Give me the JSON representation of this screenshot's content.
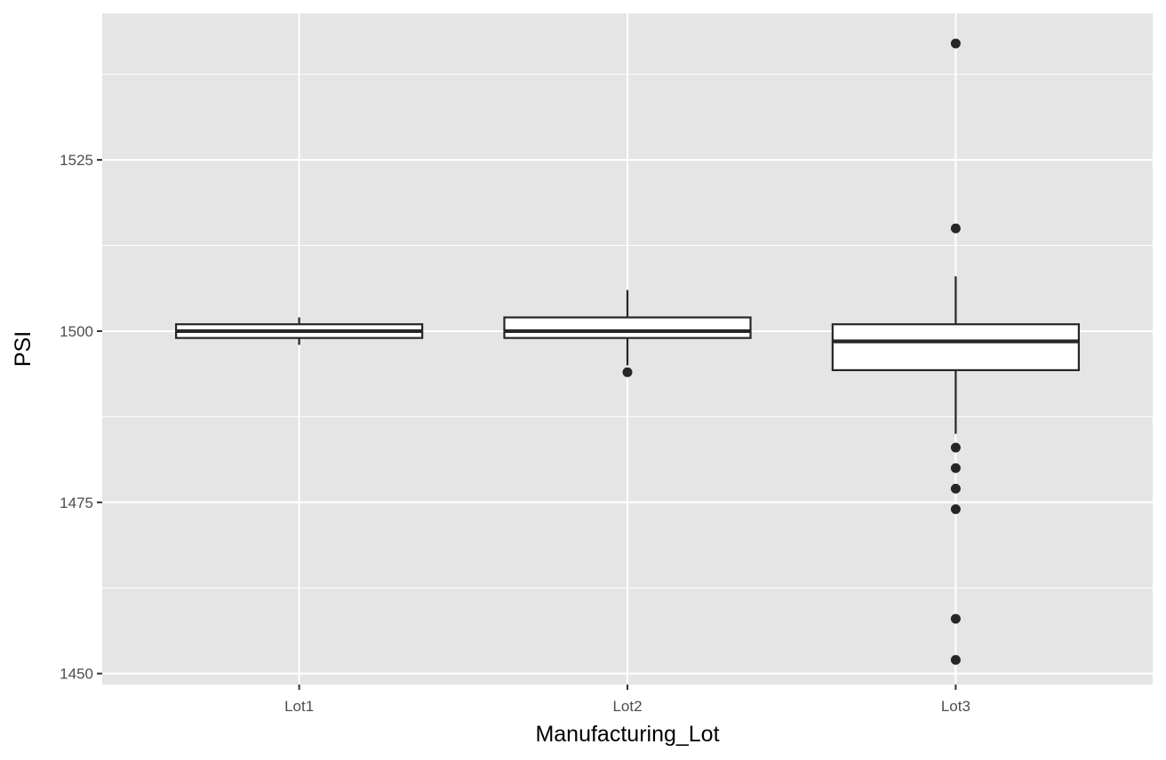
{
  "chart_data": {
    "type": "boxplot",
    "xlabel": "Manufacturing_Lot",
    "ylabel": "PSI",
    "categories": [
      "Lot1",
      "Lot2",
      "Lot3"
    ],
    "ylim": [
      1448.4,
      1546.4
    ],
    "yticks": [
      1450,
      1475,
      1500,
      1525
    ],
    "y_minor_ticks": [
      1462.5,
      1487.5,
      1512.5,
      1537.5
    ],
    "grid": true,
    "colors": {
      "panel": "#e5e5e5",
      "grid": "#ffffff",
      "box_fill": "#ffffff",
      "box_stroke": "#262626",
      "outlier": "#262626"
    },
    "boxes": [
      {
        "category": "Lot1",
        "whisker_low": 1498,
        "q1": 1499,
        "median": 1500,
        "q3": 1501,
        "whisker_high": 1502,
        "outliers": []
      },
      {
        "category": "Lot2",
        "whisker_low": 1495,
        "q1": 1499,
        "median": 1500,
        "q3": 1502,
        "whisker_high": 1506,
        "outliers": [
          1494
        ]
      },
      {
        "category": "Lot3",
        "whisker_low": 1485,
        "q1": 1494.3,
        "median": 1498.5,
        "q3": 1501,
        "whisker_high": 1508,
        "outliers": [
          1542,
          1515,
          1483,
          1480,
          1477,
          1474,
          1458,
          1452
        ]
      }
    ]
  }
}
